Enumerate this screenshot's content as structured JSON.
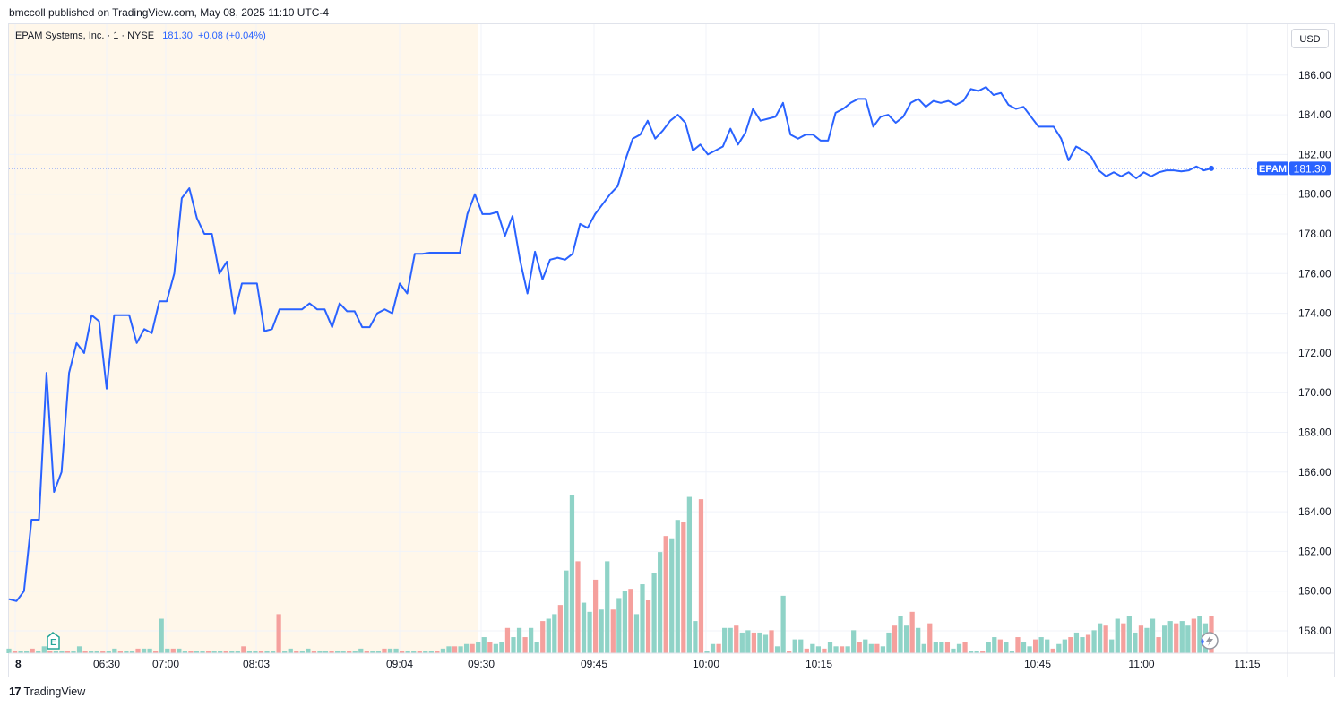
{
  "header": {
    "publisher_line": "bmccoll published on TradingView.com, May 08, 2025 11:10 UTC-4"
  },
  "legend": {
    "symbol": "EPAM Systems, Inc. · 1 · NYSE",
    "price": "181.30",
    "change": "+0.08 (+0.04%)"
  },
  "currency": "USD",
  "price_tag": {
    "symbol": "EPAM",
    "price": "181.30"
  },
  "earnings_marker": "E",
  "footer": {
    "brand": "TradingView",
    "logo": "17"
  },
  "colors": {
    "line": "#2962ff",
    "premarket_bg": "#fff7ea",
    "volume_up": "#8fd3c7",
    "volume_down": "#f5a09d",
    "grid": "#f0f3fa"
  },
  "chart_data": {
    "type": "line",
    "title": "",
    "xlabel": "",
    "ylabel": "",
    "ylim": [
      157,
      187.5
    ],
    "y_ticks": [
      "158.00",
      "160.00",
      "162.00",
      "164.00",
      "166.00",
      "168.00",
      "170.00",
      "172.00",
      "174.00",
      "176.00",
      "178.00",
      "180.00",
      "182.00",
      "184.00",
      "186.00"
    ],
    "x_ticks": [
      "8",
      "06:30",
      "07:00",
      "08:03",
      "09:04",
      "09:30",
      "09:45",
      "10:00",
      "10:15",
      "10:45",
      "11:00",
      "11:15"
    ],
    "last_price": 181.3,
    "premarket_shaded": true,
    "grid": true,
    "series": [
      {
        "values": [
          159.6,
          159.5,
          160.0,
          163.6,
          163.6,
          171.0,
          165.0,
          166.0,
          171.0,
          172.5,
          172.0,
          173.9,
          173.6,
          170.2,
          173.9,
          173.9,
          173.9,
          172.5,
          173.2,
          173.0,
          174.6,
          174.6,
          176.0,
          179.8,
          180.3,
          178.8,
          178.0,
          178.0,
          176.0,
          176.6,
          174.0,
          175.5,
          175.5,
          175.5,
          173.1,
          173.2,
          174.2,
          174.2,
          174.2,
          174.2,
          174.5,
          174.2,
          174.2,
          173.3,
          174.5,
          174.1,
          174.1,
          173.3,
          173.3,
          174.0,
          174.2,
          174.0,
          175.5,
          175.0,
          177.0,
          177.0,
          177.05,
          177.05,
          177.05,
          177.05,
          177.05,
          179.0,
          180.0,
          179.0,
          179.0,
          179.1,
          177.9,
          178.9,
          176.7,
          175.0,
          177.1,
          175.7,
          176.7,
          176.8,
          176.7,
          177.0,
          178.5,
          178.3,
          179.0,
          179.5,
          180.0,
          180.4,
          181.7,
          182.8,
          183.0,
          183.7,
          182.8,
          183.2,
          183.7,
          184.0,
          183.6,
          182.2,
          182.5,
          182.0,
          182.2,
          182.4,
          183.3,
          182.5,
          183.1,
          184.3,
          183.7,
          183.8,
          183.9,
          184.6,
          183.0,
          182.8,
          183.0,
          183.0,
          182.7,
          182.7,
          184.1,
          184.3,
          184.6,
          184.8,
          184.8,
          183.4,
          183.9,
          184.0,
          183.6,
          183.9,
          184.6,
          184.8,
          184.4,
          184.7,
          184.6,
          184.7,
          184.5,
          184.7,
          185.3,
          185.2,
          185.4,
          185.0,
          185.1,
          184.5,
          184.3,
          184.4,
          183.9,
          183.4,
          183.4,
          183.4,
          182.8,
          181.7,
          182.4,
          182.2,
          181.9,
          181.2,
          180.9,
          181.1,
          180.9,
          181.1,
          180.8,
          181.1,
          180.9,
          181.1,
          181.2,
          181.2,
          181.15,
          181.2,
          181.4,
          181.2,
          181.3
        ]
      },
      {
        "name": "Volume",
        "type": "bar",
        "values": [
          2,
          1,
          1,
          1,
          2,
          1,
          3,
          1,
          1,
          1,
          1,
          1,
          3,
          1,
          1,
          1,
          1,
          1,
          2,
          1,
          1,
          1,
          2,
          2,
          2,
          1,
          15,
          2,
          2,
          2,
          1,
          1,
          1,
          1,
          1,
          1,
          1,
          1,
          1,
          1,
          3,
          1,
          1,
          1,
          1,
          1,
          17,
          1,
          2,
          1,
          1,
          2,
          1,
          1,
          1,
          1,
          1,
          1,
          1,
          1,
          2,
          1,
          1,
          1,
          2,
          2,
          2,
          1,
          1,
          1,
          1,
          1,
          1,
          1,
          2,
          3,
          3,
          3,
          4,
          4,
          5,
          7,
          5,
          4,
          5,
          11,
          7,
          11,
          7,
          11,
          5,
          14,
          15,
          17,
          21,
          36,
          69,
          40,
          22,
          18,
          32,
          19,
          40,
          19,
          24,
          27,
          28,
          17,
          30,
          23,
          35,
          44,
          51,
          50,
          58,
          57,
          68,
          14,
          67,
          1,
          4,
          4,
          11,
          11,
          12,
          9,
          10,
          9,
          9,
          8,
          10,
          3,
          25,
          1,
          6,
          6,
          2,
          4,
          3,
          2,
          5,
          3,
          3,
          3,
          10,
          5,
          6,
          4,
          4,
          3,
          9,
          12,
          16,
          12,
          18,
          11,
          4,
          13,
          5,
          5,
          5,
          2,
          4,
          5,
          1,
          1,
          1,
          5,
          7,
          6,
          5,
          1,
          7,
          5,
          3,
          6,
          7,
          6,
          2,
          4,
          6,
          7,
          9,
          7,
          8,
          10,
          13,
          12,
          6,
          15,
          13,
          16,
          9,
          12,
          11,
          15,
          7,
          12,
          14,
          13,
          14,
          12,
          15,
          16,
          13,
          16
        ]
      }
    ]
  }
}
